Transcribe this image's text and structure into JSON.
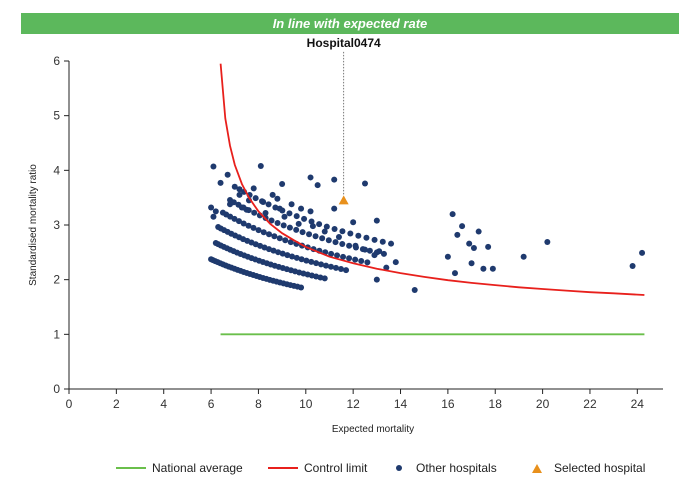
{
  "banner": {
    "text": "In line with expected rate",
    "color": "#5cb85c"
  },
  "colors": {
    "national": "#6abf4b",
    "control": "#e8201c",
    "others": "#1f3a6e",
    "selected": "#e8901c",
    "axis": "#222222"
  },
  "chart_data": {
    "type": "scatter",
    "xlabel": "Expected mortality",
    "ylabel": "Standardised mortality ratio",
    "xlim": [
      0,
      25
    ],
    "ylim": [
      0,
      6
    ],
    "x_ticks": [
      0,
      2,
      4,
      6,
      8,
      10,
      12,
      14,
      16,
      18,
      20,
      22,
      24
    ],
    "y_ticks": [
      0,
      1,
      2,
      3,
      4,
      5,
      6
    ],
    "grid": false,
    "legend_position": "bottom-right",
    "national_average": {
      "name": "National average",
      "y": 1,
      "x_range": [
        6.4,
        24.3
      ]
    },
    "control_limit": {
      "name": "Control limit",
      "points": [
        [
          6.4,
          5.95
        ],
        [
          6.6,
          4.95
        ],
        [
          6.8,
          4.45
        ],
        [
          7.0,
          4.1
        ],
        [
          7.3,
          3.75
        ],
        [
          7.6,
          3.5
        ],
        [
          8.0,
          3.25
        ],
        [
          8.5,
          3.02
        ],
        [
          9.0,
          2.85
        ],
        [
          9.5,
          2.72
        ],
        [
          10.0,
          2.6
        ],
        [
          11.0,
          2.42
        ],
        [
          12.0,
          2.3
        ],
        [
          13.0,
          2.2
        ],
        [
          14.0,
          2.12
        ],
        [
          15.0,
          2.05
        ],
        [
          16.0,
          1.99
        ],
        [
          17.0,
          1.94
        ],
        [
          18.0,
          1.9
        ],
        [
          19.0,
          1.86
        ],
        [
          20.0,
          1.83
        ],
        [
          21.0,
          1.8
        ],
        [
          22.0,
          1.77
        ],
        [
          23.0,
          1.75
        ],
        [
          24.3,
          1.72
        ]
      ]
    },
    "selected_hospital": {
      "name": "Selected hospital",
      "label": "Hospital0474",
      "x": 11.6,
      "y": 3.45
    },
    "other_hospitals": {
      "name": "Other hospitals",
      "points": [
        [
          6.1,
          4.07
        ],
        [
          6.4,
          3.77
        ],
        [
          6.7,
          3.92
        ],
        [
          7.0,
          3.7
        ],
        [
          7.2,
          3.55
        ],
        [
          7.6,
          3.45
        ],
        [
          7.8,
          3.67
        ],
        [
          8.1,
          4.08
        ],
        [
          8.2,
          3.42
        ],
        [
          8.6,
          3.55
        ],
        [
          9.0,
          3.75
        ],
        [
          10.2,
          3.87
        ],
        [
          10.5,
          3.73
        ],
        [
          11.2,
          3.83
        ],
        [
          12.5,
          3.76
        ],
        [
          8.8,
          3.48
        ],
        [
          9.4,
          3.38
        ],
        [
          9.8,
          3.3
        ],
        [
          10.2,
          3.25
        ],
        [
          11.2,
          3.3
        ],
        [
          12.0,
          3.05
        ],
        [
          13.0,
          3.08
        ],
        [
          6.0,
          3.32
        ],
        [
          6.2,
          3.25
        ],
        [
          6.1,
          3.15
        ],
        [
          6.8,
          3.38
        ],
        [
          7.3,
          3.32
        ],
        [
          7.5,
          3.28
        ],
        [
          8.3,
          3.22
        ],
        [
          8.9,
          3.3
        ],
        [
          9.1,
          3.15
        ],
        [
          9.7,
          3.02
        ],
        [
          10.3,
          2.98
        ],
        [
          10.8,
          2.88
        ],
        [
          11.4,
          2.78
        ],
        [
          12.1,
          2.62
        ],
        [
          12.5,
          2.55
        ],
        [
          12.9,
          2.45
        ],
        [
          16.2,
          3.2
        ],
        [
          16.6,
          2.98
        ],
        [
          16.4,
          2.82
        ],
        [
          17.3,
          2.88
        ],
        [
          16.9,
          2.66
        ],
        [
          17.1,
          2.58
        ],
        [
          16.0,
          2.42
        ],
        [
          16.3,
          2.12
        ],
        [
          17.0,
          2.3
        ],
        [
          17.5,
          2.2
        ],
        [
          17.9,
          2.2
        ],
        [
          17.7,
          2.6
        ],
        [
          19.2,
          2.42
        ],
        [
          20.2,
          2.69
        ],
        [
          23.8,
          2.25
        ],
        [
          24.2,
          2.49
        ],
        [
          14.6,
          1.81
        ],
        [
          13.0,
          2.0
        ],
        [
          13.4,
          2.22
        ],
        [
          13.8,
          2.32
        ],
        [
          13.1,
          2.52
        ]
      ],
      "curve_groups": [
        {
          "x_range": [
            6.0,
            9.8
          ],
          "k": 2.58,
          "count": 30
        },
        {
          "x_range": [
            6.2,
            10.8
          ],
          "k": 2.95,
          "count": 30
        },
        {
          "x_range": [
            6.3,
            11.7
          ],
          "k": 3.3,
          "count": 30
        },
        {
          "x_range": [
            6.5,
            12.6
          ],
          "k": 3.65,
          "count": 28
        },
        {
          "x_range": [
            6.8,
            13.3
          ],
          "k": 4.0,
          "count": 26
        },
        {
          "x_range": [
            7.2,
            13.6
          ],
          "k": 4.35,
          "count": 22
        }
      ]
    }
  },
  "legend": [
    {
      "label": "National average",
      "kind": "line",
      "color": "#6abf4b"
    },
    {
      "label": "Control limit",
      "kind": "line",
      "color": "#e8201c"
    },
    {
      "label": "Other hospitals",
      "kind": "dot",
      "color": "#1f3a6e"
    },
    {
      "label": "Selected hospital",
      "kind": "triangle",
      "color": "#e8901c"
    }
  ]
}
